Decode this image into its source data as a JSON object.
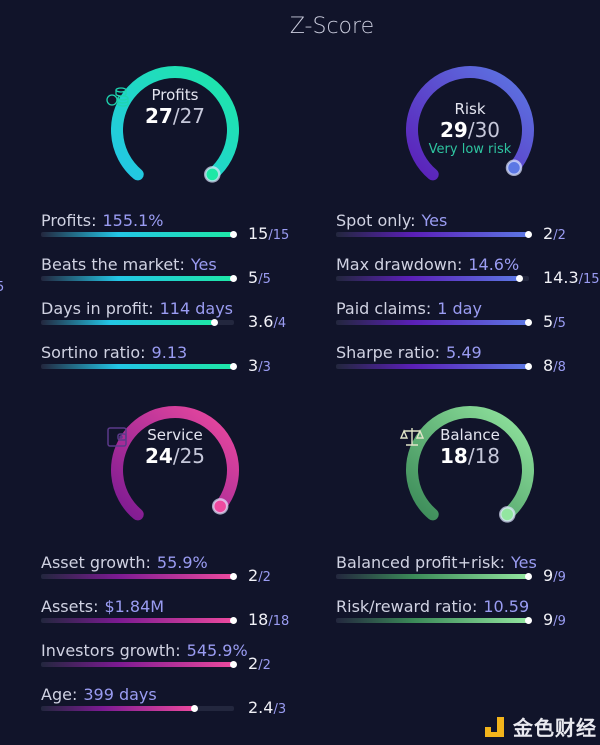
{
  "title": "Z-Score",
  "edge_fragment": "5",
  "watermark": "金色财经",
  "panels": [
    {
      "id": "profits",
      "name": "Profits",
      "score": "27",
      "max": "27",
      "icon": "coins-icon",
      "colors": [
        "#23c6e6",
        "#1ee8a6"
      ],
      "rows": [
        {
          "label": "Profits:",
          "value": "155.1%",
          "score": "15",
          "max": "15"
        },
        {
          "label": "Beats the market:",
          "value": "Yes",
          "score": "5",
          "max": "5"
        },
        {
          "label": "Days in profit:",
          "value": "114 days",
          "score": "3.6",
          "max": "4"
        },
        {
          "label": "Sortino ratio:",
          "value": "9.13",
          "score": "3",
          "max": "3"
        }
      ]
    },
    {
      "id": "risk",
      "name": "Risk",
      "score": "29",
      "max": "30",
      "sub": "Very low risk",
      "colors": [
        "#5b1fb8",
        "#5c78e4"
      ],
      "rows": [
        {
          "label": "Spot only:",
          "value": "Yes",
          "score": "2",
          "max": "2"
        },
        {
          "label": "Max drawdown:",
          "value": "14.6%",
          "score": "14.3",
          "max": "15"
        },
        {
          "label": "Paid claims:",
          "value": "1 day",
          "score": "5",
          "max": "5"
        },
        {
          "label": "Sharpe ratio:",
          "value": "5.49",
          "score": "8",
          "max": "8"
        }
      ]
    },
    {
      "id": "service",
      "name": "Service",
      "score": "24",
      "max": "25",
      "icon": "wallet-icon",
      "colors": [
        "#7c1a92",
        "#ee4a9f"
      ],
      "rows": [
        {
          "label": "Asset growth:",
          "value": "55.9%",
          "score": "2",
          "max": "2"
        },
        {
          "label": "Assets:",
          "value": "$1.84M",
          "score": "18",
          "max": "18"
        },
        {
          "label": "Investors growth:",
          "value": "545.9%",
          "score": "2",
          "max": "2"
        },
        {
          "label": "Age:",
          "value": "399 days",
          "score": "2.4",
          "max": "3"
        }
      ]
    },
    {
      "id": "balance",
      "name": "Balance",
      "score": "18",
      "max": "18",
      "icon": "scales-icon",
      "colors": [
        "#3b8a58",
        "#93e6a0"
      ],
      "rows": [
        {
          "label": "Balanced profit+risk:",
          "value": "Yes",
          "score": "9",
          "max": "9"
        },
        {
          "label": "Risk/reward ratio:",
          "value": "10.59",
          "score": "9",
          "max": "9"
        }
      ]
    }
  ]
}
